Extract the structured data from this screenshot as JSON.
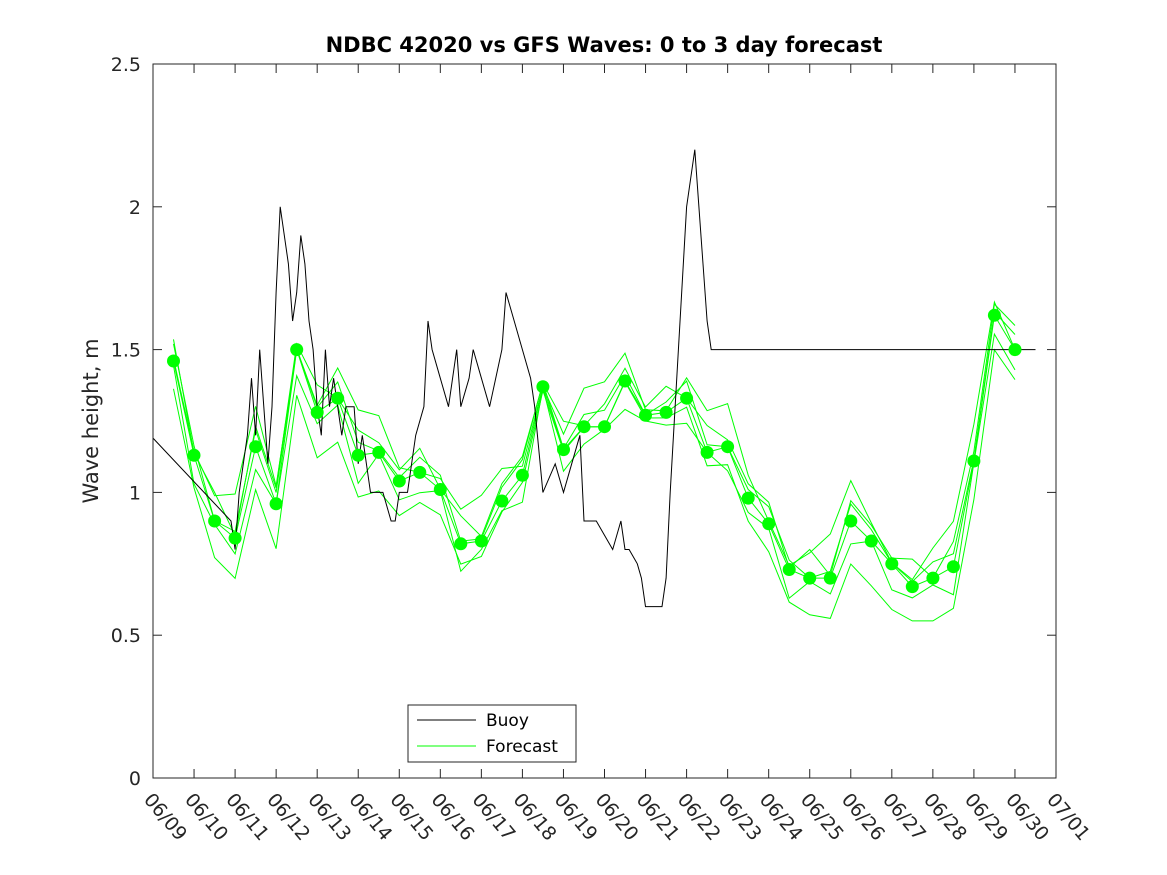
{
  "chart_data": {
    "type": "line",
    "title": "NDBC 42020 vs GFS Waves: 0 to 3 day forecast",
    "xlabel": "",
    "ylabel": "Wave height, m",
    "ylim": [
      0,
      2.5
    ],
    "xlim": [
      "06/09",
      "07/01"
    ],
    "x_ticks": [
      "06/09",
      "06/10",
      "06/11",
      "06/12",
      "06/13",
      "06/14",
      "06/15",
      "06/16",
      "06/17",
      "06/18",
      "06/19",
      "06/20",
      "06/21",
      "06/22",
      "06/23",
      "06/24",
      "06/25",
      "06/26",
      "06/27",
      "06/28",
      "06/29",
      "06/30",
      "07/01"
    ],
    "y_ticks": [
      "0",
      "0.5",
      "1",
      "1.5",
      "2",
      "2.5"
    ],
    "grid": false,
    "legend_position": "bottom-left",
    "colors": {
      "buoy": "#000000",
      "forecast": "#00ff00",
      "axis": "#262626"
    },
    "series": [
      {
        "name": "Buoy",
        "x": [
          0,
          1.9,
          2.0,
          2.1,
          2.3,
          2.4,
          2.5,
          2.6,
          2.7,
          2.8,
          2.9,
          3.0,
          3.1,
          3.3,
          3.4,
          3.5,
          3.6,
          3.7,
          3.8,
          3.9,
          4.0,
          4.1,
          4.2,
          4.3,
          4.4,
          4.6,
          4.7,
          4.8,
          4.9,
          5.0,
          5.1,
          5.2,
          5.3,
          5.5,
          5.6,
          5.8,
          5.9,
          6.0,
          6.2,
          6.3,
          6.4,
          6.6,
          6.7,
          6.8,
          7.0,
          7.2,
          7.4,
          7.5,
          7.7,
          7.8,
          8.0,
          8.2,
          8.5,
          8.6,
          8.8,
          9.0,
          9.2,
          9.3,
          9.5,
          9.8,
          10.0,
          10.2,
          10.4,
          10.5,
          10.7,
          10.8,
          11.0,
          11.2,
          11.4,
          11.5,
          11.6,
          11.8,
          11.9,
          12.0,
          12.2,
          12.4,
          12.5,
          12.6,
          12.8,
          13.0,
          13.2,
          13.4,
          13.5,
          13.6,
          13.7,
          13.8,
          14.0,
          14.2,
          14.4,
          14.6,
          14.8,
          14.9,
          15.0,
          15.2,
          15.4,
          15.6,
          15.8,
          16.0,
          16.2,
          16.4,
          16.6,
          16.8,
          17.0,
          17.5,
          18.0,
          18.2,
          18.4,
          18.6,
          18.8,
          19.0,
          19.5,
          19.8,
          20.0,
          20.2,
          20.4,
          20.6,
          20.8,
          21.0,
          21.1,
          21.2,
          21.3,
          21.5
        ],
        "y": [
          1.19,
          0.9,
          0.8,
          1.0,
          1.2,
          1.4,
          1.2,
          1.5,
          1.3,
          1.1,
          1.3,
          1.7,
          2.0,
          1.8,
          1.6,
          1.7,
          1.9,
          1.8,
          1.6,
          1.5,
          1.3,
          1.2,
          1.5,
          1.3,
          1.4,
          1.2,
          1.3,
          1.3,
          1.3,
          1.1,
          1.2,
          1.1,
          1.0,
          1.0,
          1.0,
          0.9,
          0.9,
          1.0,
          1.0,
          1.1,
          1.2,
          1.3,
          1.6,
          1.5,
          1.4,
          1.3,
          1.5,
          1.3,
          1.4,
          1.5,
          1.4,
          1.3,
          1.5,
          1.7,
          1.6,
          1.5,
          1.4,
          1.3,
          1.0,
          1.1,
          1.0,
          1.1,
          1.2,
          0.9,
          0.9,
          0.9,
          0.85,
          0.8,
          0.9,
          0.8,
          0.8,
          0.75,
          0.7,
          0.6,
          0.6,
          0.6,
          0.7,
          1.0,
          1.5,
          2.0,
          2.2,
          1.8,
          1.6,
          1.5,
          1.5,
          1.5,
          1.5,
          1.5,
          1.5,
          1.5,
          1.5,
          1.5,
          1.5,
          1.5,
          1.5,
          1.5,
          1.5,
          1.5,
          1.5,
          1.5,
          1.5,
          1.5,
          1.5,
          1.5,
          1.5,
          1.5,
          1.5,
          1.5,
          1.5,
          1.5,
          1.5,
          1.5,
          1.5,
          1.5,
          1.5,
          1.5,
          1.5,
          1.5,
          1.5,
          1.5,
          1.5,
          1.5
        ]
      },
      {
        "name": "Forecast",
        "markers_x": [
          0.5,
          1.0,
          1.5,
          2.0,
          2.5,
          3.0,
          3.5,
          4.0,
          4.5,
          5.0,
          5.5,
          6.0,
          6.5,
          7.0,
          7.5,
          8.0,
          8.5,
          9.0,
          9.5,
          10.0,
          10.5,
          11.0,
          11.5,
          12.0,
          12.5,
          13.0,
          13.5,
          14.0,
          14.5,
          15.0,
          15.5,
          16.0,
          16.5,
          17.0,
          17.5,
          18.0,
          18.5,
          19.0,
          19.5,
          20.0,
          20.5,
          21.0
        ],
        "markers_y": [
          1.46,
          1.13,
          0.9,
          0.84,
          1.16,
          0.96,
          1.5,
          1.28,
          1.33,
          1.13,
          1.14,
          1.04,
          1.07,
          1.01,
          0.82,
          0.83,
          0.97,
          1.06,
          1.37,
          1.15,
          1.23,
          1.23,
          1.39,
          1.27,
          1.28,
          1.33,
          1.14,
          1.16,
          0.98,
          0.89,
          0.73,
          0.7,
          0.7,
          0.9,
          0.83,
          0.75,
          0.67,
          0.7,
          0.74,
          1.11,
          1.62,
          1.5
        ]
      }
    ]
  }
}
